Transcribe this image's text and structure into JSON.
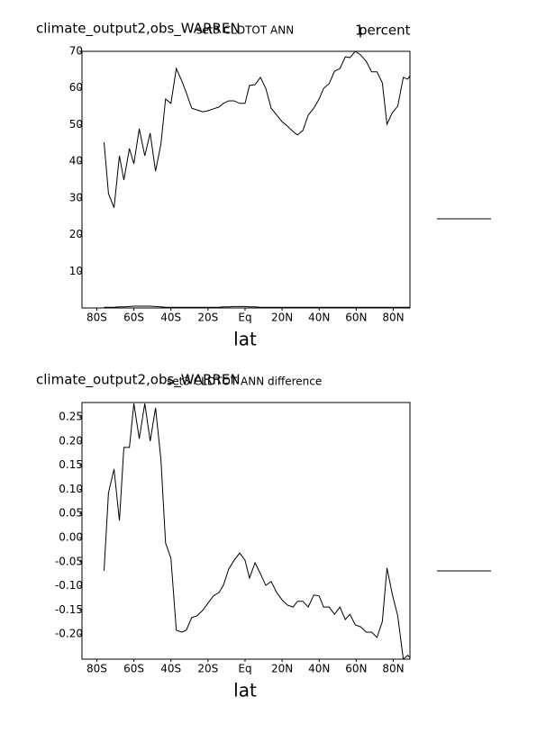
{
  "chart_data": [
    {
      "type": "line",
      "left_title": "climate_output2,obs_WARREN",
      "title": "set3 CLDTOT ANN",
      "right_title": "1",
      "units": "percent",
      "xlabel": "lat",
      "x": [
        -76.1,
        -73.7,
        -70.7,
        -67.8,
        -65.4,
        -62.4,
        -60,
        -57.1,
        -54.1,
        -51.2,
        -48.3,
        -45.4,
        -42.9,
        -40,
        -37.1,
        -34.1,
        -31.7,
        -28.8,
        -25.9,
        -22.9,
        -20,
        -17.1,
        -14.1,
        -11.7,
        -8.8,
        -5.9,
        -2.9,
        0,
        2.4,
        5.4,
        8.3,
        11.2,
        14.1,
        17.1,
        20,
        22.9,
        25.9,
        28.3,
        31.2,
        34.1,
        37.1,
        40,
        42.4,
        45.4,
        48.3,
        51.2,
        54.1,
        56.6,
        59.5,
        62.4,
        65.4,
        68.3,
        71.2,
        74.1,
        76.6,
        79.5,
        82.4,
        85.4,
        87.8,
        89.3
      ],
      "series": [
        {
          "color": "#000000",
          "values": [
            45.2,
            31.2,
            27.3,
            41.5,
            34.9,
            43.5,
            39.3,
            48.9,
            41.5,
            47.7,
            37.3,
            44.7,
            57.0,
            55.8,
            65.3,
            61.9,
            58.7,
            54.5,
            54.0,
            53.5,
            53.8,
            54.3,
            54.8,
            55.8,
            56.5,
            56.5,
            55.8,
            55.8,
            60.7,
            60.9,
            62.9,
            59.9,
            54.5,
            52.6,
            50.8,
            49.6,
            48.1,
            47.2,
            48.4,
            52.6,
            54.5,
            57.0,
            59.9,
            61.2,
            64.6,
            65.3,
            68.5,
            68.3,
            70.0,
            69.0,
            67.3,
            64.4,
            64.4,
            61.4,
            50.1,
            53.3,
            55.0,
            62.9,
            62.4,
            63.6
          ]
        },
        {
          "color": "#000000",
          "values": [
            0.2,
            0.2,
            0.2,
            0.3,
            0.3,
            0.4,
            0.5,
            0.5,
            0.5,
            0.5,
            0.4,
            0.3,
            0.2,
            0.2,
            0.2,
            0.2,
            0.2,
            0.2,
            0.2,
            0.2,
            0.2,
            0.2,
            0.2,
            0.3,
            0.3,
            0.4,
            0.4,
            0.4,
            0.3,
            0.3,
            0.2,
            0.2,
            0.2,
            0.2,
            0.2,
            0.2,
            0.2,
            0.2,
            0.2,
            0.2,
            0.2,
            0.2,
            0.2,
            0.2,
            0.2,
            0.2,
            0.2,
            0.2,
            0.2,
            0.2,
            0.2,
            0.2,
            0.2,
            0.2,
            0.2,
            0.2,
            0.2,
            0.2,
            0.2,
            0.2
          ]
        }
      ],
      "xlim": [
        -88,
        89
      ],
      "xticks": [
        {
          "value": -80,
          "label": "80S"
        },
        {
          "value": -60,
          "label": "60S"
        },
        {
          "value": -40,
          "label": "40S"
        },
        {
          "value": -20,
          "label": "20S"
        },
        {
          "value": 0,
          "label": "Eq"
        },
        {
          "value": 20,
          "label": "20N"
        },
        {
          "value": 40,
          "label": "40N"
        },
        {
          "value": 60,
          "label": "60N"
        },
        {
          "value": 80,
          "label": "80N"
        }
      ],
      "ylim": [
        0,
        70
      ],
      "yticks": [
        10,
        20,
        30,
        40,
        50,
        60,
        70
      ]
    },
    {
      "type": "line",
      "left_title": "climate_output2,obs_WARREN",
      "title": "set3 CLDTOT ANN difference",
      "xlabel": "lat",
      "x": [
        -76.1,
        -73.7,
        -70.7,
        -67.8,
        -65.4,
        -62.4,
        -60,
        -57.1,
        -54.1,
        -51.2,
        -48.3,
        -45.4,
        -42.9,
        -40,
        -37.1,
        -34.1,
        -31.7,
        -28.8,
        -25.9,
        -22.9,
        -20,
        -17.1,
        -14.1,
        -11.7,
        -8.8,
        -5.9,
        -2.9,
        0,
        2.4,
        5.4,
        8.3,
        11.2,
        14.1,
        17.1,
        20,
        22.9,
        25.9,
        28.3,
        31.2,
        34.1,
        37.1,
        40,
        42.4,
        45.4,
        48.3,
        51.2,
        54.1,
        56.6,
        59.5,
        62.4,
        65.4,
        68.3,
        71.2,
        74.1,
        76.6,
        79.5,
        82.4,
        85.4,
        87.8,
        89.3
      ],
      "series": [
        {
          "color": "#000000",
          "values": [
            -0.069,
            0.093,
            0.142,
            0.035,
            0.187,
            0.187,
            0.278,
            0.205,
            0.278,
            0.2,
            0.269,
            0.162,
            -0.011,
            -0.043,
            -0.192,
            -0.196,
            -0.192,
            -0.166,
            -0.162,
            -0.151,
            -0.136,
            -0.121,
            -0.114,
            -0.099,
            -0.065,
            -0.047,
            -0.032,
            -0.047,
            -0.084,
            -0.052,
            -0.075,
            -0.099,
            -0.091,
            -0.114,
            -0.129,
            -0.14,
            -0.144,
            -0.132,
            -0.132,
            -0.144,
            -0.119,
            -0.121,
            -0.144,
            -0.144,
            -0.159,
            -0.144,
            -0.17,
            -0.159,
            -0.181,
            -0.185,
            -0.196,
            -0.196,
            -0.207,
            -0.174,
            -0.063,
            -0.118,
            -0.162,
            -0.252,
            -0.244,
            -0.25
          ]
        }
      ],
      "xlim": [
        -88,
        89
      ],
      "xticks": [
        {
          "value": -80,
          "label": "80S"
        },
        {
          "value": -60,
          "label": "60S"
        },
        {
          "value": -40,
          "label": "40S"
        },
        {
          "value": -20,
          "label": "20S"
        },
        {
          "value": 0,
          "label": "Eq"
        },
        {
          "value": 20,
          "label": "20N"
        },
        {
          "value": 40,
          "label": "40N"
        },
        {
          "value": 60,
          "label": "60N"
        },
        {
          "value": 80,
          "label": "80N"
        }
      ],
      "ylim": [
        -0.252,
        0.28
      ],
      "yticks": [
        0.25,
        {
          "value": 0.2,
          "label": "0.20"
        },
        0.15,
        {
          "value": 0.1,
          "label": "0.10"
        },
        0.05,
        {
          "value": 0,
          "label": "0.00"
        },
        -0.05,
        {
          "value": -0.1,
          "label": "-0.10"
        },
        -0.15,
        {
          "value": -0.2,
          "label": "-0.20"
        }
      ]
    }
  ]
}
